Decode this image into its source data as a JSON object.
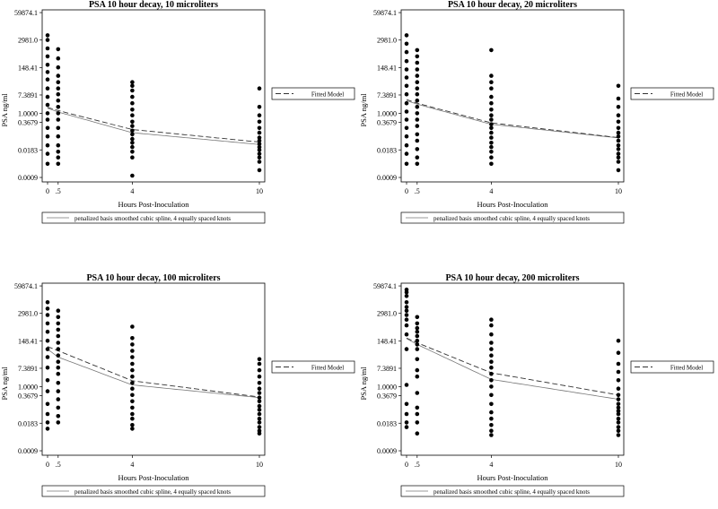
{
  "chart_data": [
    {
      "type": "scatter",
      "title": "PSA 10 hour decay, 10 microliters",
      "xlabel": "Hours Post-Inoculation",
      "ylabel": "PSA ng/ml",
      "x_ticks": [
        0,
        0.5,
        4,
        10
      ],
      "x_tick_labels": [
        "0",
        ".5",
        "4",
        "10"
      ],
      "y_scale": "log",
      "y_ticks": [
        "59874.1",
        "2981.0",
        "148.41",
        "7.3891",
        "1.0000",
        "0.3679",
        "0.0183",
        "0.0009"
      ],
      "legend_right": "Fitted Model",
      "legend_bottom": "penalized basis smoothed cubic spline, 4 equally spaced knots",
      "fitted": {
        "x": [
          0,
          0.5,
          4,
          10
        ],
        "y": [
          1.9,
          1.35,
          0.17,
          0.043
        ]
      },
      "spline": {
        "x": [
          0,
          0.5,
          4,
          10
        ],
        "y": [
          1.75,
          1.15,
          0.12,
          0.033
        ]
      },
      "points": [
        {
          "x": 0,
          "y": [
            5000,
            3000,
            1200,
            500,
            200,
            90,
            40,
            15,
            6,
            2.5,
            1,
            0.5,
            0.2,
            0.08,
            0.03,
            0.012,
            0.004
          ]
        },
        {
          "x": 0.5,
          "y": [
            1100,
            400,
            150,
            60,
            30,
            15,
            8,
            4,
            2,
            1,
            0.5,
            0.2,
            0.08,
            0.03,
            0.015,
            0.008,
            0.004
          ]
        },
        {
          "x": 4,
          "y": [
            30,
            20,
            12,
            6,
            3,
            1.5,
            0.8,
            0.4,
            0.25,
            0.15,
            0.1,
            0.06,
            0.04,
            0.025,
            0.015,
            0.008,
            0.0011
          ]
        },
        {
          "x": 10,
          "y": [
            15,
            2,
            0.8,
            0.4,
            0.2,
            0.12,
            0.07,
            0.05,
            0.035,
            0.025,
            0.018,
            0.012,
            0.008,
            0.005,
            0.002
          ]
        }
      ]
    },
    {
      "type": "scatter",
      "title": "PSA 10 hour decay, 20 microliters",
      "xlabel": "Hours Post-Inoculation",
      "ylabel": "PSA ng/ml",
      "x_ticks": [
        0,
        0.5,
        4,
        10
      ],
      "x_tick_labels": [
        "0",
        ".5",
        "4",
        "10"
      ],
      "y_scale": "log",
      "y_ticks": [
        "59874.1",
        "2981.0",
        "148.41",
        "7.3891",
        "1.0000",
        "0.3679",
        "0.0183",
        "0.0009"
      ],
      "legend_right": "Fitted Model",
      "legend_bottom": "penalized basis smoothed cubic spline, 4 equally spaced knots",
      "fitted": {
        "x": [
          0,
          0.5,
          4,
          10
        ],
        "y": [
          4.5,
          3.0,
          0.35,
          0.07
        ]
      },
      "spline": {
        "x": [
          0,
          0.5,
          4,
          10
        ],
        "y": [
          4.0,
          2.7,
          0.3,
          0.068
        ]
      },
      "points": [
        {
          "x": 0,
          "y": [
            5000,
            2000,
            800,
            300,
            120,
            50,
            20,
            8,
            3,
            1.2,
            0.5,
            0.2,
            0.08,
            0.03,
            0.012,
            0.004
          ]
        },
        {
          "x": 0.5,
          "y": [
            1000,
            500,
            250,
            120,
            60,
            30,
            15,
            8,
            4,
            2,
            1,
            0.5,
            0.25,
            0.1,
            0.05,
            0.02,
            0.008,
            0.004
          ]
        },
        {
          "x": 4,
          "y": [
            1000,
            60,
            30,
            15,
            6,
            3,
            1.5,
            0.8,
            0.5,
            0.3,
            0.2,
            0.12,
            0.07,
            0.04,
            0.025,
            0.015,
            0.008,
            0.004
          ]
        },
        {
          "x": 10,
          "y": [
            20,
            5,
            2,
            0.8,
            0.4,
            0.2,
            0.12,
            0.08,
            0.05,
            0.03,
            0.02,
            0.012,
            0.008,
            0.005,
            0.002
          ]
        }
      ]
    },
    {
      "type": "scatter",
      "title": "PSA 10 hour decay, 100 microliters",
      "xlabel": "Hours Post-Inoculation",
      "ylabel": "PSA ng/ml",
      "x_ticks": [
        0,
        0.5,
        4,
        10
      ],
      "x_tick_labels": [
        "0",
        ".5",
        "4",
        "10"
      ],
      "y_scale": "log",
      "y_ticks": [
        "59874.1",
        "2981.0",
        "148.41",
        "7.3891",
        "1.0000",
        "0.3679",
        "0.0183",
        "0.0009"
      ],
      "legend_right": "Fitted Model",
      "legend_bottom": "penalized basis smoothed cubic spline, 4 equally spaced knots",
      "fitted": {
        "x": [
          0,
          0.5,
          4,
          10
        ],
        "y": [
          80,
          50,
          1.9,
          0.32
        ]
      },
      "spline": {
        "x": [
          0,
          0.5,
          4,
          10
        ],
        "y": [
          60,
          25,
          1.2,
          0.3
        ]
      },
      "points": [
        {
          "x": 0,
          "y": [
            10000,
            5000,
            2500,
            1000,
            400,
            150,
            60,
            25,
            8,
            2,
            0.6,
            0.15,
            0.05,
            0.02,
            0.01
          ]
        },
        {
          "x": 0.5,
          "y": [
            4000,
            2000,
            1000,
            500,
            250,
            120,
            60,
            30,
            15,
            8,
            4,
            1.5,
            0.6,
            0.25,
            0.1,
            0.04,
            0.02
          ]
        },
        {
          "x": 4,
          "y": [
            700,
            200,
            100,
            50,
            25,
            12,
            6,
            3,
            1.5,
            0.8,
            0.4,
            0.2,
            0.1,
            0.05,
            0.03,
            0.015,
            0.01
          ]
        },
        {
          "x": 10,
          "y": [
            20,
            12,
            6,
            3,
            1.5,
            0.8,
            0.5,
            0.3,
            0.2,
            0.12,
            0.08,
            0.05,
            0.03,
            0.02,
            0.012,
            0.008,
            0.006
          ]
        }
      ]
    },
    {
      "type": "scatter",
      "title": "PSA 10 hour decay, 200 microliters",
      "xlabel": "Hours Post-Inoculation",
      "ylabel": "PSA ng/ml",
      "x_ticks": [
        0,
        0.5,
        4,
        10
      ],
      "x_tick_labels": [
        "0",
        ".5",
        "4",
        "10"
      ],
      "y_scale": "log",
      "y_ticks": [
        "59874.1",
        "2981.0",
        "148.41",
        "7.3891",
        "1.0000",
        "0.3679",
        "0.0183",
        "0.0009"
      ],
      "legend_right": "Fitted Model",
      "legend_bottom": "penalized basis smoothed cubic spline, 4 equally spaced knots",
      "fitted": {
        "x": [
          0,
          0.5,
          4,
          10
        ],
        "y": [
          200,
          120,
          4.5,
          0.4
        ]
      },
      "spline": {
        "x": [
          0,
          0.5,
          4,
          10
        ],
        "y": [
          190,
          100,
          2.2,
          0.25
        ]
      },
      "points": [
        {
          "x": 0,
          "y": [
            40000,
            30000,
            20000,
            10000,
            6000,
            4000,
            2500,
            1500,
            800,
            300,
            60,
            1.2,
            0.15,
            0.05,
            0.02,
            0.012
          ]
        },
        {
          "x": 0.5,
          "y": [
            2000,
            1000,
            600,
            400,
            250,
            150,
            100,
            60,
            20,
            6,
            3,
            0.5,
            0.1,
            0.05,
            0.02,
            0.006
          ]
        },
        {
          "x": 4,
          "y": [
            1500,
            800,
            300,
            120,
            60,
            30,
            15,
            8,
            4,
            2,
            1,
            0.4,
            0.15,
            0.06,
            0.03,
            0.015,
            0.008,
            0.005
          ]
        },
        {
          "x": 10,
          "y": [
            150,
            40,
            12,
            5,
            2,
            0.8,
            0.4,
            0.25,
            0.15,
            0.1,
            0.07,
            0.05,
            0.03,
            0.02,
            0.012,
            0.008,
            0.005
          ]
        }
      ]
    }
  ]
}
